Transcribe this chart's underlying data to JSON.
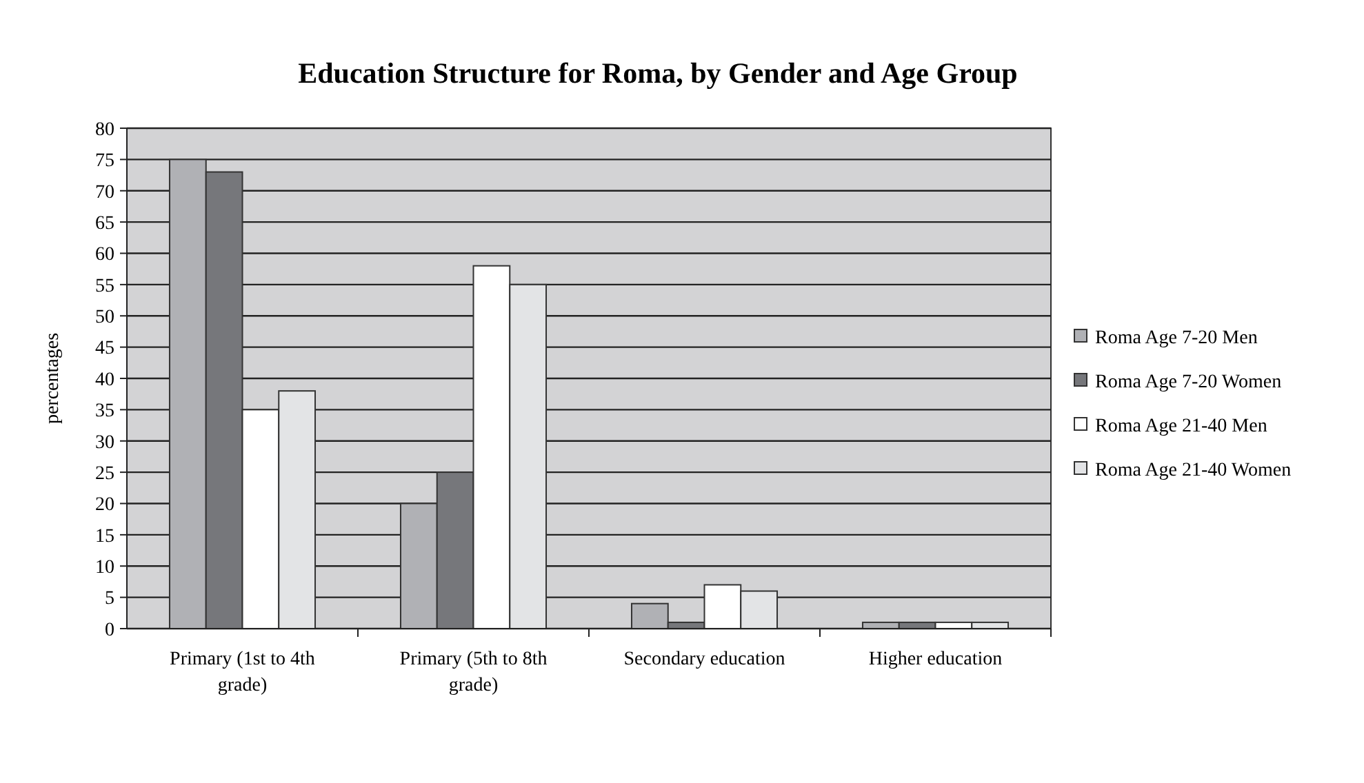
{
  "chart_data": {
    "type": "bar",
    "title": "Education Structure for Roma, by Gender and Age Group",
    "ylabel": "percentages",
    "categories": [
      "Primary (1st to 4th grade)",
      "Primary (5th to 8th grade)",
      "Secondary education",
      "Higher education"
    ],
    "series": [
      {
        "name": "Roma Age 7-20 Men",
        "color": "#b0b1b5",
        "values": [
          75,
          20,
          4,
          1
        ]
      },
      {
        "name": "Roma Age 7-20 Women",
        "color": "#76777b",
        "values": [
          73,
          25,
          1,
          1
        ]
      },
      {
        "name": "Roma Age 21-40 Men",
        "color": "#ffffff",
        "values": [
          35,
          58,
          7,
          1
        ]
      },
      {
        "name": "Roma Age 21-40 Women",
        "color": "#e3e4e6",
        "values": [
          38,
          55,
          6,
          1
        ]
      }
    ],
    "ylim": [
      0,
      80
    ],
    "yticks": [
      0,
      5,
      10,
      15,
      20,
      25,
      30,
      35,
      40,
      45,
      50,
      55,
      60,
      65,
      70,
      75,
      80
    ],
    "grid": "y",
    "legend": "right"
  }
}
